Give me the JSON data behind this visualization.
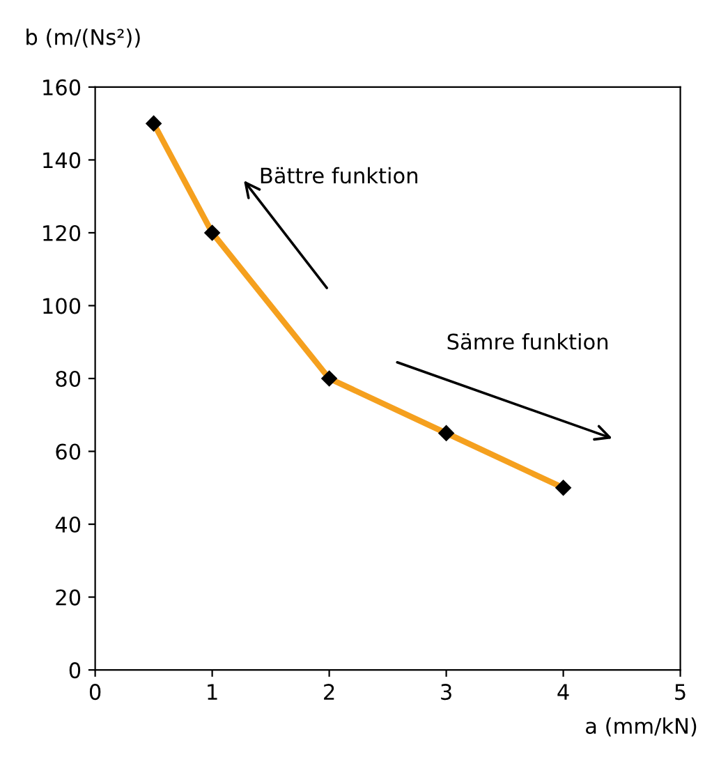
{
  "chart_data": {
    "type": "line",
    "x": [
      0.5,
      1,
      2,
      3,
      4
    ],
    "series": [
      {
        "color": "#f5a01e",
        "values": [
          150,
          120,
          80,
          65,
          50
        ]
      }
    ],
    "marker": "diamond",
    "xlabel": "a (mm/kN)",
    "ylabel": "b (m/(Ns²))",
    "xlim": [
      0,
      5
    ],
    "ylim": [
      0,
      160
    ],
    "xticks": [
      0,
      1,
      2,
      3,
      4,
      5
    ],
    "yticks": [
      0,
      20,
      40,
      60,
      80,
      100,
      120,
      140,
      160
    ],
    "grid": false,
    "annotations": [
      "Bättre funktion",
      "Sämre funktion"
    ]
  }
}
